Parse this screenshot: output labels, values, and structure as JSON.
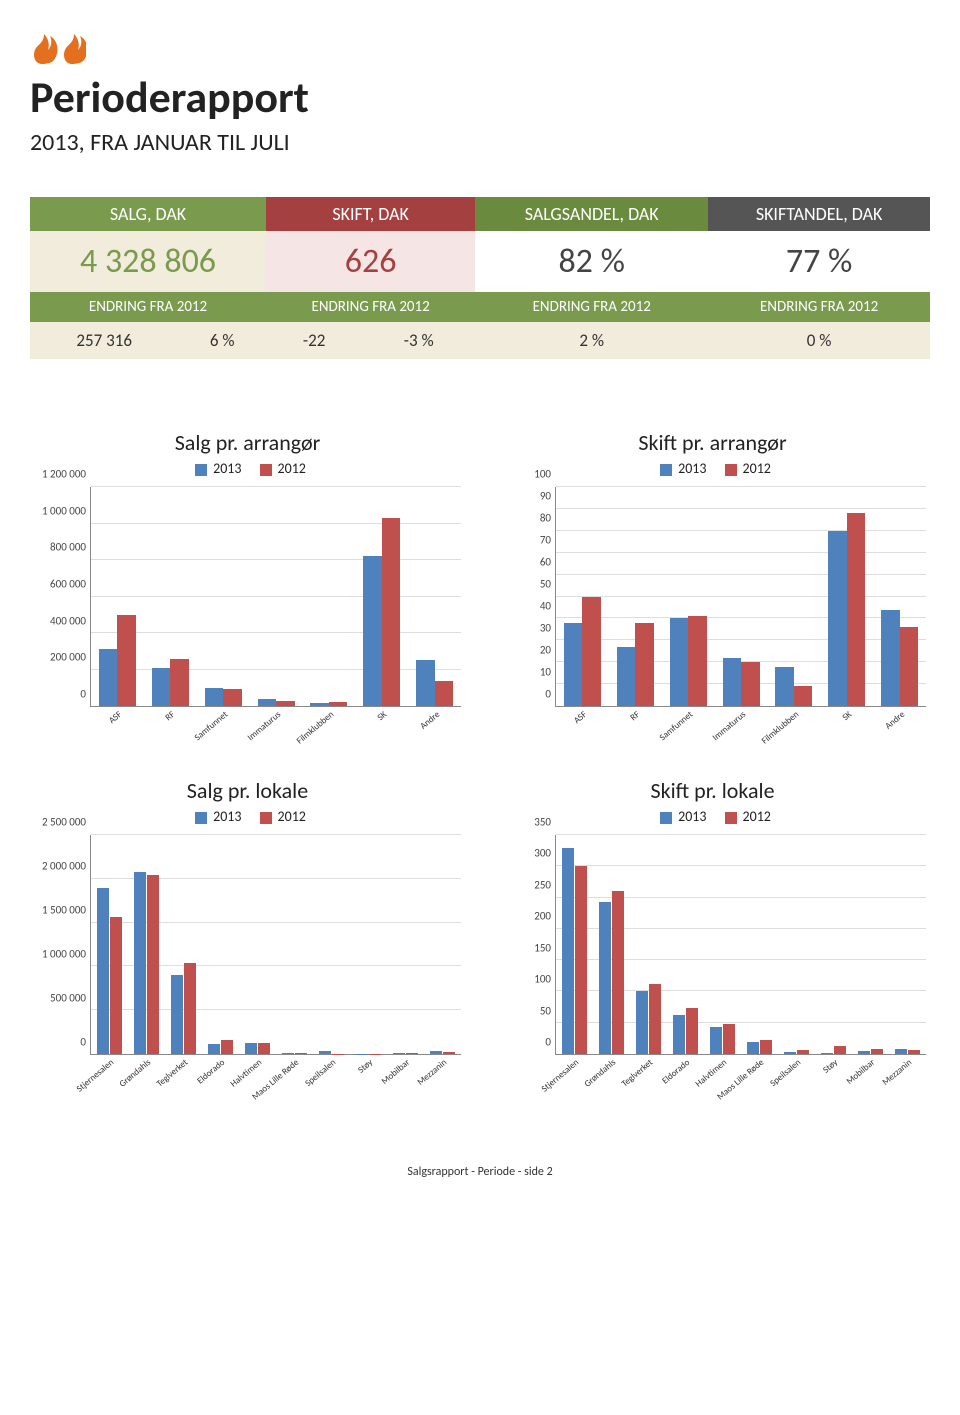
{
  "header": {
    "title": "Perioderapport",
    "subtitle": "2013, FRA JANUAR TIL JULI"
  },
  "logo_color": "#e46f1f",
  "kpi": {
    "cols": [
      {
        "label": "SALG, DAK",
        "value": "4 328 806",
        "sub": "ENDRING FRA 2012",
        "headclass": "salg",
        "valclass": "salg"
      },
      {
        "label": "SKIFT, DAK",
        "value": "626",
        "sub": "ENDRING FRA 2012",
        "headclass": "skift",
        "valclass": "skift"
      },
      {
        "label": "SALGSANDEL, DAK",
        "value": "82 %",
        "sub": "ENDRING FRA 2012",
        "headclass": "salgandel",
        "valclass": "salgandel"
      },
      {
        "label": "SKIFTANDEL, DAK",
        "value": "77 %",
        "sub": "ENDRING FRA 2012",
        "headclass": "skiftandel",
        "valclass": "skiftandel"
      }
    ],
    "changes": [
      "257 316",
      "6 %",
      "-22",
      "-3 %",
      "2 %",
      "0 %"
    ]
  },
  "series_colors": {
    "s2013": "#4f81bd",
    "s2012": "#c0504d"
  },
  "legend_labels": {
    "s2013": "2013",
    "s2012": "2012"
  },
  "grid_color": "#dddddd",
  "axis_color": "#888888",
  "charts": {
    "salg_arr": {
      "title": "Salg pr. arrangør",
      "ymax": 1200000,
      "ystep": 200000,
      "yfmt": "thousands_space",
      "categories": [
        "ASF",
        "RF",
        "Samfunnet",
        "Immaturus",
        "Filmklubben",
        "SK",
        "Andre"
      ],
      "label_rotate": -40,
      "label_size": "small",
      "data2013": [
        310000,
        210000,
        100000,
        40000,
        15000,
        820000,
        250000
      ],
      "data2012": [
        500000,
        255000,
        95000,
        30000,
        20000,
        1030000,
        135000
      ]
    },
    "skift_arr": {
      "title": "Skift pr. arrangør",
      "ymax": 100,
      "ystep": 10,
      "yfmt": "plain",
      "categories": [
        "ASF",
        "RF",
        "Samfunnet",
        "Immaturus",
        "Filmklubben",
        "SK",
        "Andre"
      ],
      "label_rotate": -40,
      "label_size": "small",
      "data2013": [
        38,
        27,
        40,
        22,
        18,
        80,
        44
      ],
      "data2012": [
        50,
        38,
        41,
        20,
        9,
        88,
        36
      ]
    },
    "salg_lok": {
      "title": "Salg pr. lokale",
      "ymax": 2500000,
      "ystep": 500000,
      "yfmt": "thousands_space",
      "categories": [
        "Stjernesalen",
        "Grøndahls",
        "Teglverket",
        "Eldorado",
        "Halvtimen",
        "Maos Lille Røde",
        "Speilsalen",
        "Støy",
        "Mobilbar",
        "Mezzanin"
      ],
      "label_rotate": -40,
      "label_size": "small",
      "data2013": [
        1900000,
        2080000,
        900000,
        120000,
        130000,
        10000,
        40000,
        5000,
        10000,
        40000
      ],
      "data2012": [
        1560000,
        2040000,
        1040000,
        160000,
        130000,
        15000,
        5000,
        5000,
        15000,
        25000
      ]
    },
    "skift_lok": {
      "title": "Skift pr. lokale",
      "ymax": 350,
      "ystep": 50,
      "yfmt": "plain",
      "categories": [
        "Stjernesalen",
        "Grøndahls",
        "Teglverket",
        "Eldorado",
        "Halvtimen",
        "Maos Lille Røde",
        "Speilsalen",
        "Støy",
        "Mobilbar",
        "Mezzanin"
      ],
      "label_rotate": -40,
      "label_size": "small",
      "data2013": [
        330,
        243,
        100,
        62,
        43,
        20,
        3,
        2,
        5,
        8
      ],
      "data2012": [
        300,
        260,
        112,
        73,
        48,
        22,
        6,
        13,
        8,
        7
      ]
    }
  },
  "footer": "Salgsrapport - Periode - side 2"
}
